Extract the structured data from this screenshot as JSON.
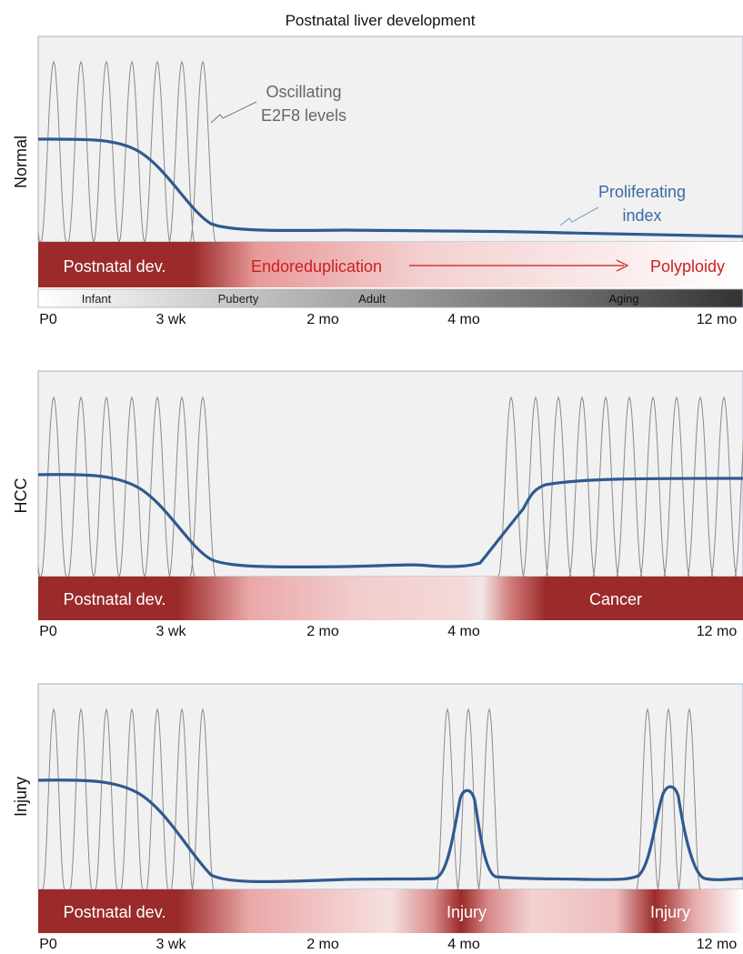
{
  "title": "Postnatal liver development",
  "colors": {
    "panel_bg": "#f1f1f1",
    "panel_border": "#9fb3c8",
    "oscillation": "#8a8a8a",
    "proliferation": "#2f5a8f",
    "dark_red": "#9b2b2a",
    "pale_pink": "#f6dede",
    "red_text": "#cc1f1f"
  },
  "x_axis": {
    "ticks": [
      "P0",
      "3 wk",
      "2 mo",
      "4 mo",
      "12 mo"
    ]
  },
  "panels": [
    {
      "id": "normal",
      "ylabel": "Normal",
      "annotations": {
        "oscillation": [
          "Oscillating",
          "E2F8 levels"
        ],
        "proliferation": [
          "Proliferating",
          "index"
        ]
      },
      "band": {
        "left_label": "Postnatal dev.",
        "middle_label": "Endoreduplication",
        "right_label": "Polyploidy"
      },
      "age_bar": [
        "Infant",
        "Puberty",
        "Adult",
        "Aging"
      ]
    },
    {
      "id": "hcc",
      "ylabel": "HCC",
      "band": {
        "left_label": "Postnatal dev.",
        "right_label": "Cancer"
      }
    },
    {
      "id": "injury",
      "ylabel": "Injury",
      "band": {
        "left_label": "Postnatal dev.",
        "injury_labels": [
          "Injury",
          "Injury"
        ]
      }
    }
  ]
}
